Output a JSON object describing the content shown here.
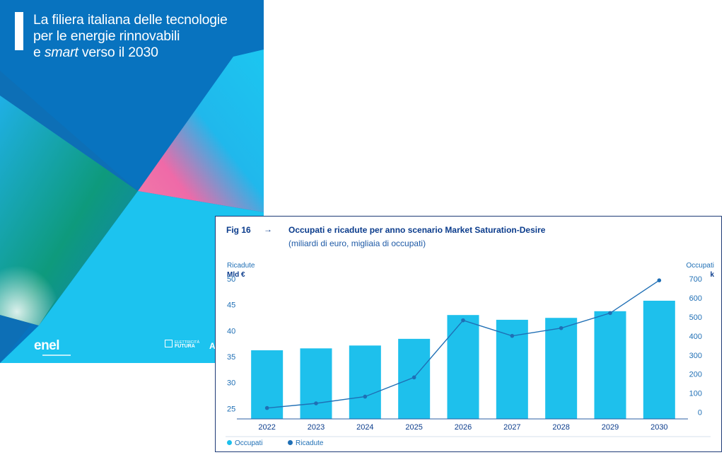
{
  "cover": {
    "title_line1": "La filiera italiana delle tecnologie",
    "title_line2": "per le energie rinnovabili",
    "title_line3_pre": "e ",
    "title_line3_italic": "smart",
    "title_line3_post": " verso il 2030",
    "logo": "enel",
    "partner_text_1": "ELETTRICITÀ",
    "partner_text_2": "FUTURA",
    "partner2": "A",
    "colors": {
      "bg": "#0873bf",
      "cyan": "#1ec4ee",
      "green": "#0e9a7c",
      "pink": "#ef6aa8"
    }
  },
  "figure": {
    "number": "Fig 16",
    "arrow": "→",
    "title": "Occupati e ricadute per anno scenario Market Saturation-Desire",
    "subtitle": "(miliardi di euro, migliaia di occupati)",
    "left_axis_title": "Ricadute",
    "left_axis_unit": "Mld €",
    "right_axis_title": "Occupati",
    "right_axis_unit": "k",
    "legend_bars": "Occupati",
    "legend_line": "Ricadute"
  },
  "chart_data": {
    "type": "bar",
    "categories": [
      "2022",
      "2023",
      "2024",
      "2025",
      "2026",
      "2027",
      "2028",
      "2029",
      "2030"
    ],
    "series": [
      {
        "name": "Occupati",
        "type": "bar",
        "axis": "right",
        "color": "#1ec0ec",
        "values": [
          325,
          335,
          350,
          385,
          510,
          485,
          495,
          530,
          585
        ]
      },
      {
        "name": "Ricadute",
        "type": "line",
        "axis": "left",
        "color": "#1f6fb5",
        "values": [
          25.1,
          26.0,
          27.3,
          31.0,
          42.0,
          39.0,
          40.5,
          43.4,
          49.7
        ]
      }
    ],
    "ylim_left": [
      23,
      50
    ],
    "yticks_left": [
      25,
      30,
      35,
      40,
      45,
      50
    ],
    "ylim_right": [
      -35,
      700
    ],
    "yticks_right": [
      0,
      100,
      200,
      300,
      400,
      500,
      600,
      700
    ],
    "grid": false,
    "legend": "bottom-left"
  }
}
